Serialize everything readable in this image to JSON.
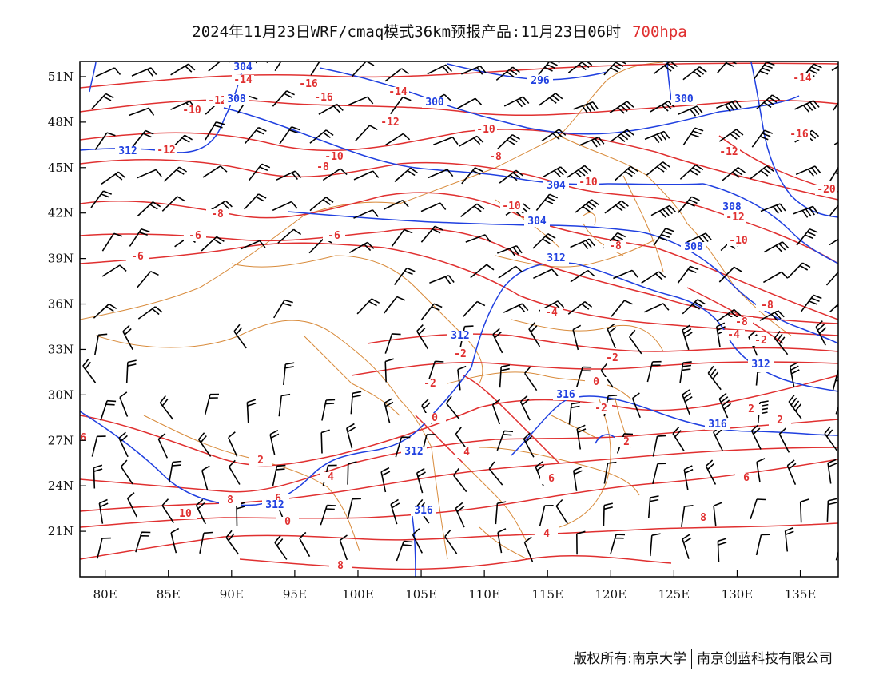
{
  "title": {
    "main": "2024年11月23日WRF/cmaq模式36km预报产品:11月23日06时",
    "level": "700hpa"
  },
  "axes": {
    "lat_labels": [
      "51N",
      "48N",
      "45N",
      "42N",
      "39N",
      "36N",
      "33N",
      "30N",
      "27N",
      "24N",
      "21N"
    ],
    "lon_labels": [
      "80E",
      "85E",
      "90E",
      "95E",
      "100E",
      "105E",
      "110E",
      "115E",
      "120E",
      "125E",
      "130E",
      "135E"
    ],
    "lon_range": [
      78,
      138
    ],
    "lat_range": [
      18,
      52
    ]
  },
  "colors": {
    "height_contour": "#2040e0",
    "temperature_contour": "#e03030",
    "border": "#d88a3a",
    "wind_barb": "#000000"
  },
  "temperature_labels": [
    "-12",
    "-14",
    "-16",
    "-16",
    "-14",
    "-12",
    "-10",
    "-12",
    "-10",
    "-8",
    "-12",
    "-16",
    "-10",
    "-8",
    "-10",
    "-8",
    "-6",
    "-10",
    "-8",
    "-6",
    "-10",
    "-12",
    "-14",
    "-20",
    "-8",
    "-6",
    "-4",
    "-2",
    "-2",
    "-8",
    "-4",
    "-2",
    "-2",
    "0",
    "-2",
    "-2",
    "0",
    "2",
    "2",
    "2",
    "4",
    "4",
    "0",
    "2",
    "4",
    "6",
    "6",
    "8",
    "6",
    "8",
    "8",
    "10",
    "6"
  ],
  "height_labels": [
    "304",
    "296",
    "300",
    "300",
    "308",
    "312",
    "304",
    "308",
    "304",
    "308",
    "312",
    "312",
    "316",
    "312",
    "316",
    "312",
    "312",
    "316"
  ],
  "footer": {
    "left": "版权所有:南京大学",
    "right": "南京创蓝科技有限公司"
  }
}
